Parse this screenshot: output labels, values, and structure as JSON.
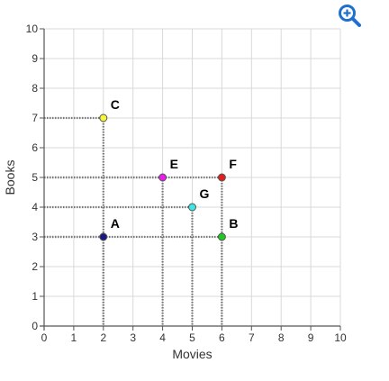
{
  "zoom_button": {
    "icon": "zoom-in-icon",
    "color": "#1f6fd1"
  },
  "chart_data": {
    "type": "scatter",
    "xlabel": "Movies",
    "ylabel": "Books",
    "xlim": [
      0,
      10
    ],
    "ylim": [
      0,
      10
    ],
    "xticks": [
      "0",
      "1",
      "2",
      "3",
      "4",
      "5",
      "6",
      "7",
      "8",
      "9",
      "10"
    ],
    "yticks": [
      "0",
      "1",
      "2",
      "3",
      "4",
      "5",
      "6",
      "7",
      "8",
      "9",
      "10"
    ],
    "grid": true,
    "points": [
      {
        "label": "A",
        "x": 2,
        "y": 3,
        "color": "#1a1a80"
      },
      {
        "label": "B",
        "x": 6,
        "y": 3,
        "color": "#22c722"
      },
      {
        "label": "C",
        "x": 2,
        "y": 7,
        "color": "#f5f53a"
      },
      {
        "label": "E",
        "x": 4,
        "y": 5,
        "color": "#e620e6"
      },
      {
        "label": "F",
        "x": 6,
        "y": 5,
        "color": "#e02020"
      },
      {
        "label": "G",
        "x": 5,
        "y": 4,
        "color": "#3ee6e6"
      }
    ]
  }
}
